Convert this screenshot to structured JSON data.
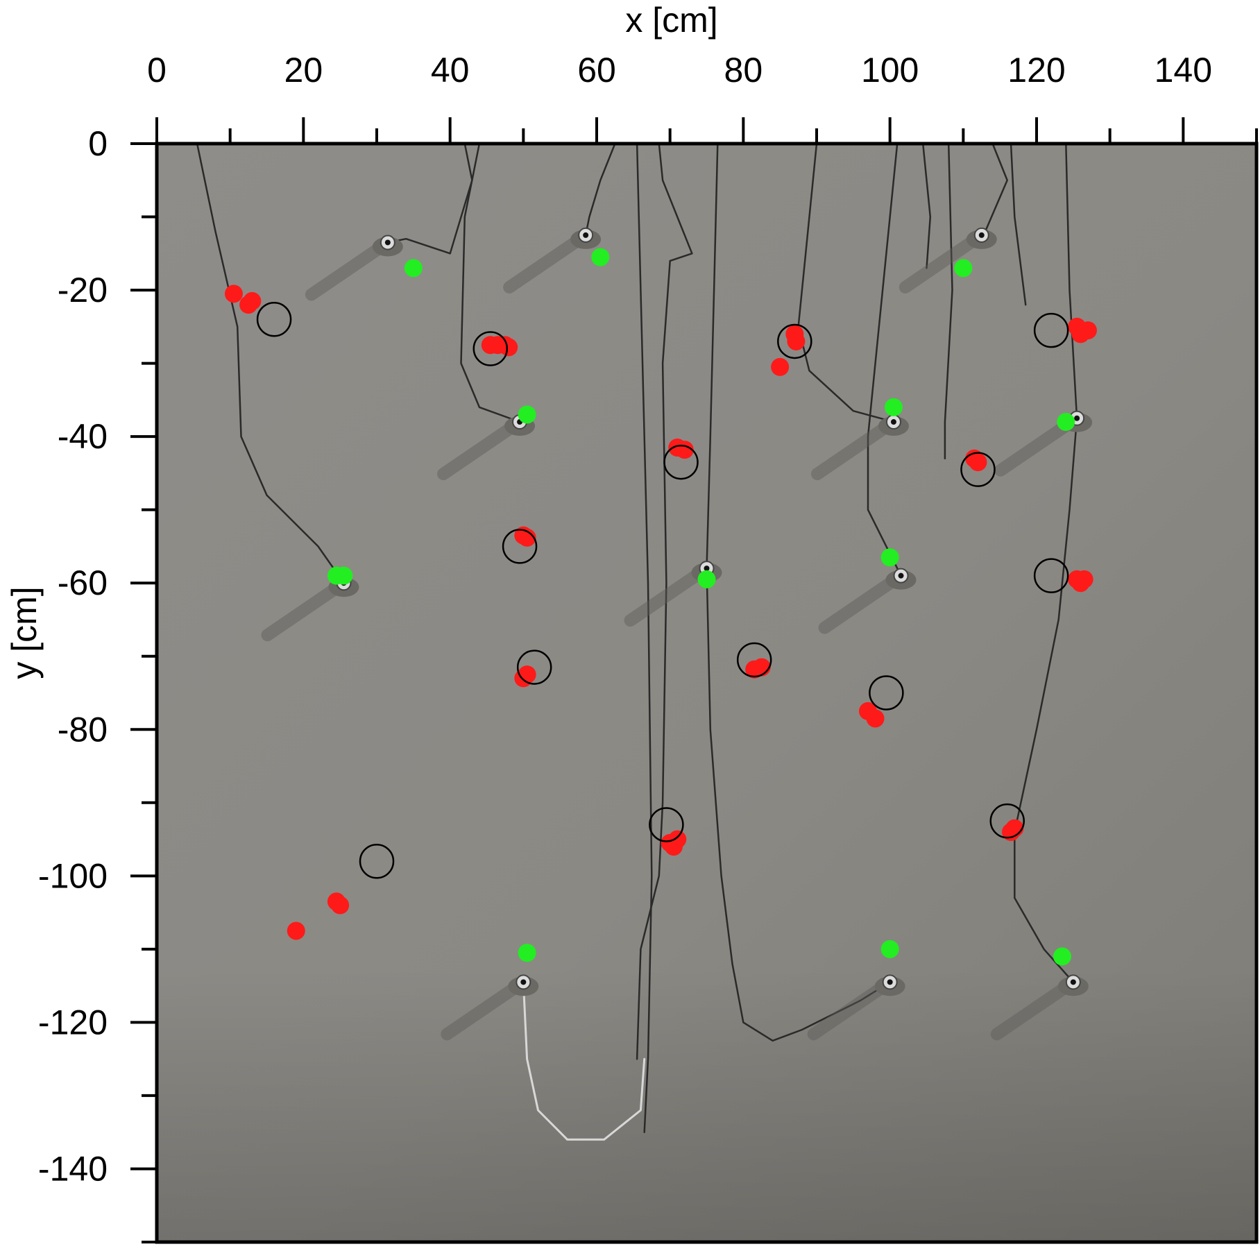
{
  "chart_data": {
    "type": "scatter",
    "xlabel": "x [cm]",
    "ylabel": "y [cm]",
    "xlim": [
      0,
      150
    ],
    "ylim": [
      -150,
      0
    ],
    "x_ticks": [
      0,
      20,
      40,
      60,
      80,
      100,
      120,
      140
    ],
    "y_ticks": [
      0,
      -20,
      -40,
      -60,
      -80,
      -100,
      -120,
      -140
    ],
    "x_axis_position": "top",
    "grid": false,
    "background": "photograph of a grey concrete slab with sensors and cables",
    "colors": {
      "background": "#8d8b86",
      "green": "#22ee22",
      "red": "#ff1a1a",
      "circle": "#000000",
      "cable_dark": "#2a2a2a",
      "cable_light": "#d8d8d8"
    },
    "series": [
      {
        "marker": "filled-circle",
        "color": "#22ee22",
        "points": [
          [
            35,
            -17
          ],
          [
            60.5,
            -15.5
          ],
          [
            50.5,
            -37
          ],
          [
            24.5,
            -59
          ],
          [
            25.5,
            -59
          ],
          [
            75,
            -59.5
          ],
          [
            100.5,
            -36
          ],
          [
            100,
            -56.5
          ],
          [
            110,
            -17
          ],
          [
            124,
            -38
          ],
          [
            50.5,
            -110.5
          ],
          [
            100,
            -110
          ],
          [
            123.5,
            -111
          ]
        ]
      },
      {
        "marker": "filled-circle",
        "color": "#ff1a1a",
        "points": [
          [
            10.5,
            -20.5
          ],
          [
            12.5,
            -22
          ],
          [
            13,
            -21.5
          ],
          [
            45.5,
            -27.5
          ],
          [
            46.5,
            -27.5
          ],
          [
            47.5,
            -27.5
          ],
          [
            48,
            -27.8
          ],
          [
            71,
            -41.5
          ],
          [
            72,
            -41.8
          ],
          [
            50,
            -53.5
          ],
          [
            50.5,
            -53.8
          ],
          [
            50,
            -73
          ],
          [
            50.5,
            -72.5
          ],
          [
            81.5,
            -71.8
          ],
          [
            82.5,
            -71.5
          ],
          [
            87,
            -26
          ],
          [
            87.2,
            -27
          ],
          [
            85,
            -30.5
          ],
          [
            97,
            -77.5
          ],
          [
            98,
            -78.5
          ],
          [
            111.5,
            -43
          ],
          [
            112,
            -43.5
          ],
          [
            125.5,
            -25
          ],
          [
            126,
            -26
          ],
          [
            127,
            -25.5
          ],
          [
            125.5,
            -59.5
          ],
          [
            126,
            -60
          ],
          [
            126.5,
            -59.5
          ],
          [
            70,
            -95.5
          ],
          [
            70.5,
            -96
          ],
          [
            71,
            -95
          ],
          [
            116.5,
            -94
          ],
          [
            117,
            -93.5
          ],
          [
            24.5,
            -103.5
          ],
          [
            25,
            -104
          ],
          [
            19,
            -107.5
          ]
        ]
      },
      {
        "marker": "open-circle",
        "color": "#000000",
        "points": [
          [
            16,
            -24
          ],
          [
            45.5,
            -28
          ],
          [
            71.5,
            -43.5
          ],
          [
            49.5,
            -55
          ],
          [
            51.5,
            -71.5
          ],
          [
            81.5,
            -70.5
          ],
          [
            87,
            -27
          ],
          [
            99.5,
            -75
          ],
          [
            112,
            -44.5
          ],
          [
            122,
            -25.5
          ],
          [
            122,
            -59
          ],
          [
            69.5,
            -93
          ],
          [
            116,
            -92.5
          ],
          [
            30,
            -98
          ]
        ]
      }
    ],
    "features": {
      "plugs": [
        [
          31.5,
          -13.5
        ],
        [
          58.5,
          -12.5
        ],
        [
          112.5,
          -12.5
        ],
        [
          49.5,
          -38
        ],
        [
          100.5,
          -38
        ],
        [
          125.5,
          -37.5
        ],
        [
          25.5,
          -60
        ],
        [
          75,
          -58
        ],
        [
          101.5,
          -59
        ],
        [
          50,
          -114.5
        ],
        [
          100,
          -114.5
        ],
        [
          125,
          -114.5
        ]
      ],
      "cables": {
        "dark": [
          [
            [
              5.5,
              0
            ],
            [
              8,
              -12
            ],
            [
              11,
              -25
            ],
            [
              11.5,
              -40
            ],
            [
              15,
              -48
            ],
            [
              22,
              -55
            ],
            [
              25.5,
              -60
            ]
          ],
          [
            [
              42,
              0
            ],
            [
              43,
              -5
            ],
            [
              40,
              -15
            ],
            [
              34,
              -13
            ],
            [
              31.5,
              -13.5
            ]
          ],
          [
            [
              44,
              0
            ],
            [
              42,
              -10
            ],
            [
              41.5,
              -30
            ],
            [
              44,
              -36
            ],
            [
              49.5,
              -38
            ]
          ],
          [
            [
              62.5,
              0
            ],
            [
              60.5,
              -5
            ],
            [
              59,
              -10
            ],
            [
              58.5,
              -12.5
            ]
          ],
          [
            [
              65.5,
              0
            ],
            [
              66,
              -20
            ],
            [
              67,
              -60
            ],
            [
              67.5,
              -100
            ],
            [
              67,
              -125
            ],
            [
              66.5,
              -135
            ]
          ],
          [
            [
              68.5,
              0
            ],
            [
              69,
              -5
            ],
            [
              71,
              -10
            ],
            [
              73,
              -15
            ],
            [
              70,
              -16
            ],
            [
              69,
              -30
            ],
            [
              69.5,
              -60
            ],
            [
              69,
              -90
            ],
            [
              68.5,
              -100
            ],
            [
              66,
              -110
            ],
            [
              65.5,
              -125
            ]
          ],
          [
            [
              76.5,
              0
            ],
            [
              76,
              -20
            ],
            [
              75.5,
              -40
            ],
            [
              75,
              -58
            ]
          ],
          [
            [
              75,
              -58
            ],
            [
              75.5,
              -80
            ],
            [
              77,
              -100
            ],
            [
              78.5,
              -112
            ],
            [
              80,
              -120
            ],
            [
              84,
              -122.5
            ],
            [
              88,
              -121
            ],
            [
              96,
              -117
            ],
            [
              100,
              -114.5
            ]
          ],
          [
            [
              90,
              0
            ],
            [
              88.5,
              -15
            ],
            [
              87.5,
              -25
            ],
            [
              89,
              -31
            ],
            [
              95,
              -36.5
            ],
            [
              100.5,
              -38
            ]
          ],
          [
            [
              101,
              0
            ],
            [
              99,
              -20
            ],
            [
              97,
              -40
            ],
            [
              97,
              -50
            ],
            [
              101.5,
              -59
            ]
          ],
          [
            [
              104.5,
              0
            ],
            [
              105.5,
              -10
            ],
            [
              105,
              -17
            ]
          ],
          [
            [
              108,
              0
            ],
            [
              108.5,
              -20
            ],
            [
              107.5,
              -38
            ],
            [
              107.5,
              -43
            ]
          ],
          [
            [
              114,
              0
            ],
            [
              116,
              -5
            ],
            [
              113,
              -12
            ],
            [
              112.5,
              -12.5
            ]
          ],
          [
            [
              116.5,
              0
            ],
            [
              117,
              -10
            ],
            [
              118.5,
              -22
            ]
          ],
          [
            [
              124,
              0
            ],
            [
              124.5,
              -20
            ],
            [
              125.5,
              -37.5
            ]
          ],
          [
            [
              125.5,
              -37.5
            ],
            [
              124.5,
              -50
            ],
            [
              123,
              -65
            ],
            [
              120,
              -80
            ],
            [
              117,
              -94
            ],
            [
              117,
              -103
            ],
            [
              121,
              -110
            ],
            [
              125,
              -114.5
            ]
          ]
        ],
        "light": [
          [
            [
              50,
              -114.5
            ],
            [
              50.5,
              -125
            ],
            [
              52,
              -132
            ],
            [
              56,
              -136
            ],
            [
              61,
              -136
            ],
            [
              66,
              -132
            ],
            [
              66.5,
              -125
            ]
          ]
        ]
      }
    }
  }
}
